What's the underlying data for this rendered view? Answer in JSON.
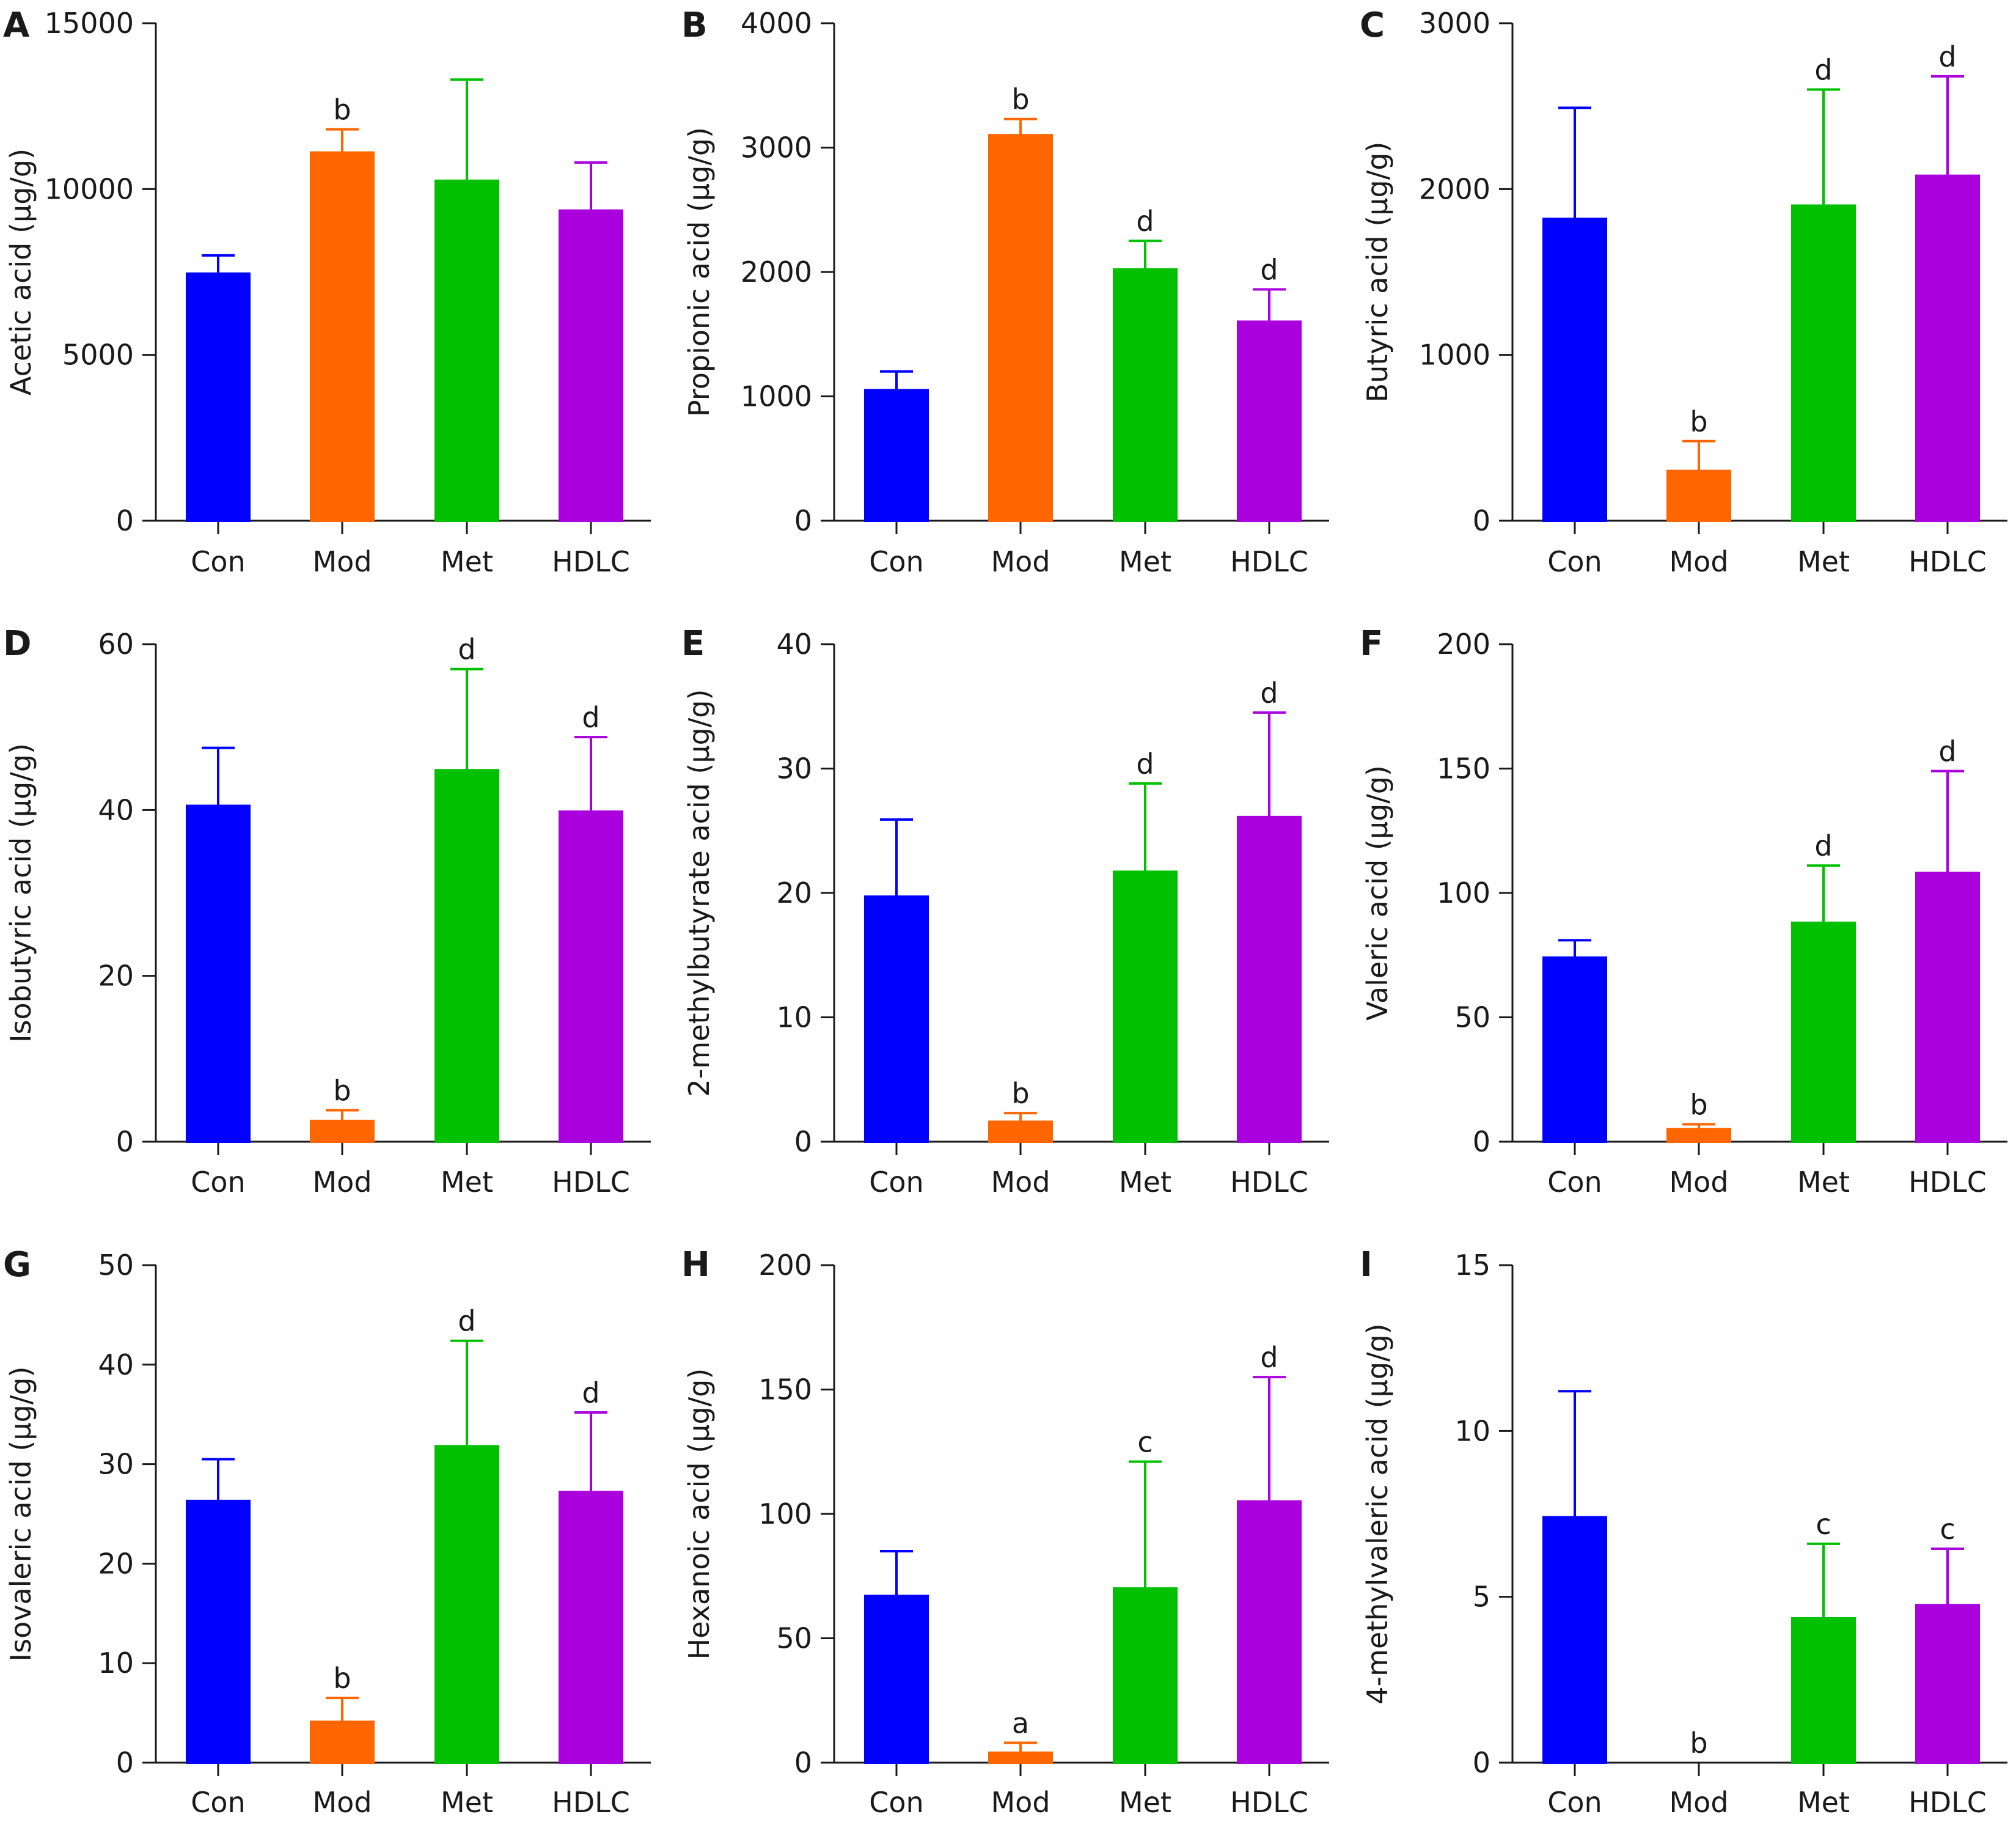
{
  "colors": {
    "Con": "#0000ff",
    "Mod": "#ff6600",
    "Met": "#00c000",
    "HDLC": "#aa00dd"
  },
  "chart_data": [
    {
      "panel": "A",
      "type": "bar",
      "categories": [
        "Con",
        "Mod",
        "Met",
        "HDLC"
      ],
      "values": [
        7450,
        11100,
        10250,
        9350
      ],
      "errors": [
        550,
        700,
        3050,
        1450
      ],
      "significance": [
        "",
        "b",
        "",
        ""
      ],
      "ylabel": "Acetic acid (μg/g)",
      "ylim": [
        0,
        15000
      ],
      "yticks": [
        0,
        5000,
        10000,
        15000
      ],
      "ytick_labels": [
        "0",
        "5000",
        "10000",
        "15000"
      ]
    },
    {
      "panel": "B",
      "type": "bar",
      "categories": [
        "Con",
        "Mod",
        "Met",
        "HDLC"
      ],
      "values": [
        1050,
        3100,
        2020,
        1600
      ],
      "errors": [
        150,
        130,
        230,
        260
      ],
      "significance": [
        "",
        "b",
        "d",
        "d"
      ],
      "ylabel": "Propionic acid (μg/g)",
      "ylim": [
        0,
        4000
      ],
      "yticks": [
        0,
        1000,
        2000,
        3000,
        4000
      ],
      "ytick_labels": [
        "0",
        "1000",
        "2000",
        "3000",
        "4000"
      ]
    },
    {
      "panel": "C",
      "type": "bar",
      "categories": [
        "Con",
        "Mod",
        "Met",
        "HDLC"
      ],
      "values": [
        1820,
        300,
        1900,
        2080
      ],
      "errors": [
        670,
        180,
        700,
        600
      ],
      "significance": [
        "",
        "b",
        "d",
        "d"
      ],
      "ylabel": "Butyric acid (μg/g)",
      "ylim": [
        0,
        3000
      ],
      "yticks": [
        0,
        1000,
        2000,
        3000
      ],
      "ytick_labels": [
        "0",
        "1000",
        "2000",
        "3000"
      ]
    },
    {
      "panel": "D",
      "type": "bar",
      "categories": [
        "Con",
        "Mod",
        "Met",
        "HDLC"
      ],
      "values": [
        40.5,
        2.5,
        44.8,
        39.8
      ],
      "errors": [
        7.0,
        1.3,
        12.2,
        9.0
      ],
      "significance": [
        "",
        "b",
        "d",
        "d"
      ],
      "ylabel": "Isobutyric acid (μg/g)",
      "ylim": [
        0,
        60
      ],
      "yticks": [
        0,
        20,
        40,
        60
      ],
      "ytick_labels": [
        "0",
        "20",
        "40",
        "60"
      ]
    },
    {
      "panel": "E",
      "type": "bar",
      "categories": [
        "Con",
        "Mod",
        "Met",
        "HDLC"
      ],
      "values": [
        19.7,
        1.6,
        21.7,
        26.1
      ],
      "errors": [
        6.2,
        0.7,
        7.1,
        8.4
      ],
      "significance": [
        "",
        "b",
        "d",
        "d"
      ],
      "ylabel": "2-methylbutyrate acid (μg/g)",
      "ylim": [
        0,
        40
      ],
      "yticks": [
        0,
        10,
        20,
        30,
        40
      ],
      "ytick_labels": [
        "0",
        "10",
        "20",
        "30",
        "40"
      ]
    },
    {
      "panel": "F",
      "type": "bar",
      "categories": [
        "Con",
        "Mod",
        "Met",
        "HDLC"
      ],
      "values": [
        74,
        5,
        88,
        108
      ],
      "errors": [
        7,
        2,
        23,
        41
      ],
      "significance": [
        "",
        "b",
        "d",
        "d"
      ],
      "ylabel": "Valeric acid (μg/g)",
      "ylim": [
        0,
        200
      ],
      "yticks": [
        0,
        50,
        100,
        150,
        200
      ],
      "ytick_labels": [
        "0",
        "50",
        "100",
        "150",
        "200"
      ]
    },
    {
      "panel": "G",
      "type": "bar",
      "categories": [
        "Con",
        "Mod",
        "Met",
        "HDLC"
      ],
      "values": [
        26.3,
        4.1,
        31.8,
        27.2
      ],
      "errors": [
        4.2,
        2.4,
        10.6,
        8.0
      ],
      "significance": [
        "",
        "b",
        "d",
        "d"
      ],
      "ylabel": "Isovaleric acid (μg/g)",
      "ylim": [
        0,
        50
      ],
      "yticks": [
        0,
        10,
        20,
        30,
        40,
        50
      ],
      "ytick_labels": [
        "0",
        "10",
        "20",
        "30",
        "40",
        "50"
      ]
    },
    {
      "panel": "H",
      "type": "bar",
      "categories": [
        "Con",
        "Mod",
        "Met",
        "HDLC"
      ],
      "values": [
        67,
        4,
        70,
        105
      ],
      "errors": [
        18,
        4,
        51,
        50
      ],
      "significance": [
        "",
        "a",
        "c",
        "d"
      ],
      "ylabel": "Hexanoic acid (μg/g)",
      "ylim": [
        0,
        200
      ],
      "yticks": [
        0,
        50,
        100,
        150,
        200
      ],
      "ytick_labels": [
        "0",
        "50",
        "100",
        "150",
        "200"
      ]
    },
    {
      "panel": "I",
      "type": "bar",
      "categories": [
        "Con",
        "Mod",
        "Met",
        "HDLC"
      ],
      "values": [
        7.4,
        0,
        4.35,
        4.75
      ],
      "errors": [
        3.8,
        0,
        2.25,
        1.7
      ],
      "significance": [
        "",
        "b",
        "c",
        "c"
      ],
      "ylabel": "4-methylvaleric acid (μg/g)",
      "ylim": [
        0,
        15
      ],
      "yticks": [
        0,
        5,
        10,
        15
      ],
      "ytick_labels": [
        "0",
        "5",
        "10",
        "15"
      ]
    }
  ]
}
